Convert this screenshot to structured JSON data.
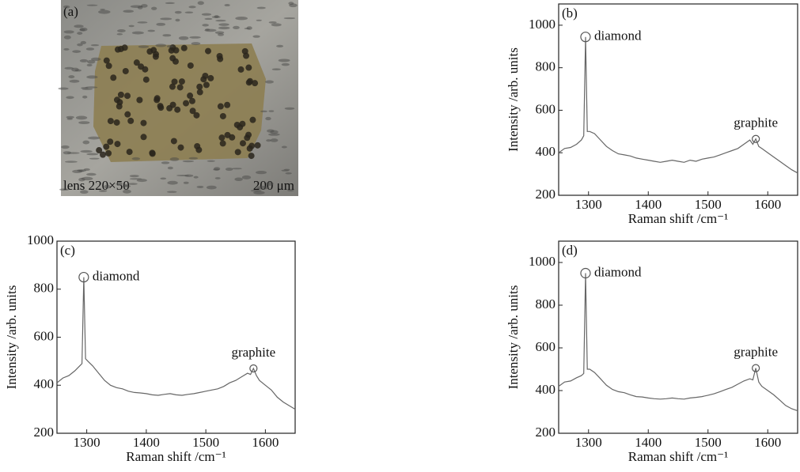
{
  "micrograph": {
    "label": "(a)",
    "lens": "lens 220×50",
    "scale": "200 μm"
  },
  "chart_data": [
    {
      "type": "line",
      "panel_label": "(b)",
      "x_label": "Raman shift /cm⁻¹",
      "y_label": "Intensity /arb. units",
      "color": "#666666",
      "x": [
        1250,
        1260,
        1270,
        1280,
        1288,
        1292,
        1295,
        1298,
        1302,
        1310,
        1320,
        1330,
        1340,
        1350,
        1360,
        1370,
        1380,
        1390,
        1400,
        1410,
        1420,
        1430,
        1440,
        1450,
        1460,
        1470,
        1480,
        1490,
        1500,
        1510,
        1520,
        1530,
        1540,
        1550,
        1560,
        1570,
        1575,
        1580,
        1585,
        1590,
        1600,
        1610,
        1620,
        1630,
        1640,
        1650
      ],
      "values": [
        400,
        420,
        425,
        440,
        460,
        480,
        945,
        500,
        500,
        490,
        460,
        430,
        410,
        395,
        390,
        385,
        375,
        370,
        365,
        360,
        355,
        360,
        365,
        360,
        355,
        365,
        360,
        370,
        375,
        380,
        390,
        400,
        410,
        420,
        440,
        460,
        440,
        465,
        430,
        420,
        400,
        380,
        360,
        340,
        320,
        305
      ],
      "annotations": [
        {
          "text": "diamond",
          "x": 1295,
          "y": 945
        },
        {
          "text": "graphite",
          "x": 1580,
          "y": 465
        }
      ],
      "xlim": [
        1250,
        1650
      ],
      "xticks": [
        1300,
        1400,
        1500,
        1600
      ],
      "ylim": [
        200,
        1100
      ],
      "yticks": [
        200,
        400,
        600,
        800,
        1000
      ]
    },
    {
      "type": "line",
      "panel_label": "(c)",
      "x_label": "Raman shift /cm⁻¹",
      "y_label": "Intensity /arb. units",
      "color": "#666666",
      "x": [
        1250,
        1260,
        1270,
        1280,
        1288,
        1292,
        1295,
        1298,
        1302,
        1310,
        1320,
        1330,
        1340,
        1350,
        1360,
        1370,
        1380,
        1390,
        1400,
        1410,
        1420,
        1430,
        1440,
        1450,
        1460,
        1470,
        1480,
        1490,
        1500,
        1510,
        1520,
        1530,
        1540,
        1550,
        1560,
        1570,
        1575,
        1580,
        1585,
        1590,
        1600,
        1610,
        1620,
        1630,
        1640,
        1650
      ],
      "values": [
        410,
        430,
        440,
        460,
        480,
        490,
        850,
        510,
        500,
        480,
        450,
        420,
        400,
        390,
        385,
        375,
        370,
        368,
        365,
        360,
        358,
        362,
        365,
        360,
        358,
        362,
        365,
        370,
        375,
        380,
        385,
        395,
        410,
        420,
        435,
        450,
        445,
        470,
        440,
        420,
        400,
        380,
        350,
        330,
        315,
        300
      ],
      "annotations": [
        {
          "text": "diamond",
          "x": 1295,
          "y": 850
        },
        {
          "text": "graphite",
          "x": 1580,
          "y": 470
        }
      ],
      "xlim": [
        1250,
        1650
      ],
      "xticks": [
        1300,
        1400,
        1500,
        1600
      ],
      "ylim": [
        200,
        1000
      ],
      "yticks": [
        200,
        400,
        600,
        800,
        1000
      ]
    },
    {
      "type": "line",
      "panel_label": "(d)",
      "x_label": "Raman shift /cm⁻¹",
      "y_label": "Intensity /arb. units",
      "color": "#666666",
      "x": [
        1250,
        1260,
        1270,
        1280,
        1288,
        1292,
        1295,
        1298,
        1302,
        1310,
        1320,
        1330,
        1340,
        1350,
        1360,
        1370,
        1380,
        1390,
        1400,
        1410,
        1420,
        1430,
        1440,
        1450,
        1460,
        1470,
        1480,
        1490,
        1500,
        1510,
        1520,
        1530,
        1540,
        1550,
        1560,
        1570,
        1575,
        1580,
        1585,
        1590,
        1600,
        1610,
        1620,
        1630,
        1640,
        1650
      ],
      "values": [
        420,
        440,
        445,
        460,
        470,
        480,
        950,
        500,
        500,
        485,
        455,
        425,
        405,
        395,
        390,
        380,
        372,
        370,
        365,
        362,
        360,
        362,
        365,
        362,
        360,
        365,
        368,
        372,
        378,
        385,
        395,
        405,
        415,
        430,
        445,
        455,
        450,
        505,
        440,
        420,
        400,
        380,
        355,
        330,
        315,
        305
      ],
      "annotations": [
        {
          "text": "diamond",
          "x": 1295,
          "y": 950
        },
        {
          "text": "graphite",
          "x": 1580,
          "y": 505
        }
      ],
      "xlim": [
        1250,
        1650
      ],
      "xticks": [
        1300,
        1400,
        1500,
        1600
      ],
      "ylim": [
        200,
        1100
      ],
      "yticks": [
        200,
        400,
        600,
        800,
        1000
      ]
    }
  ]
}
